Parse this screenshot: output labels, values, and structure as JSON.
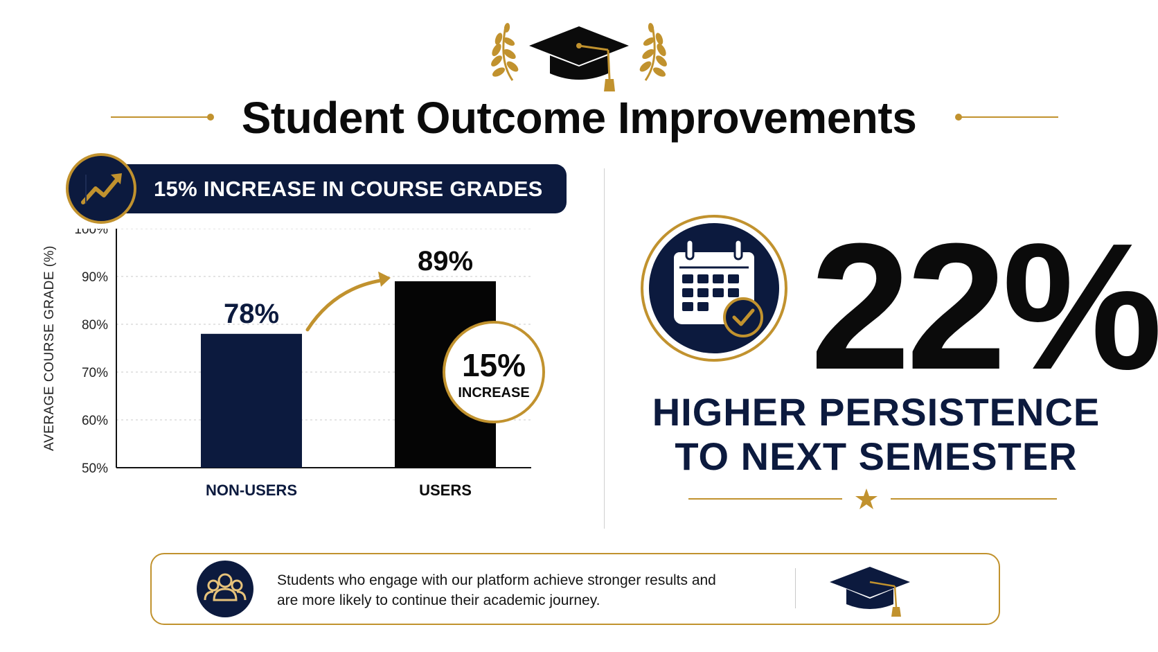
{
  "title": "Student Outcome Improvements",
  "banner": {
    "text": "15% INCREASE IN COURSE GRADES"
  },
  "chart_data": {
    "type": "bar",
    "ylabel": "AVERAGE COURSE GRADE (%)",
    "xlabel": "",
    "ylim": [
      50,
      100
    ],
    "yticks": [
      "50%",
      "60%",
      "70%",
      "80%",
      "90%",
      "100%"
    ],
    "categories": [
      "NON-USERS",
      "USERS"
    ],
    "values": [
      78,
      89
    ],
    "data_labels": [
      "78%",
      "89%"
    ],
    "grid": true,
    "colors": [
      "#0c1a3e",
      "#050505"
    ],
    "annotation": {
      "value": "15%",
      "text": "INCREASE"
    }
  },
  "stat": {
    "value": "22%",
    "line1": "HIGHER PERSISTENCE",
    "line2": "TO NEXT SEMESTER"
  },
  "footer": {
    "line1": "Students who engage with our platform achieve stronger results and",
    "line2": "are more likely to continue their academic journey."
  },
  "icons": {
    "header": "graduation-cap-icon",
    "banner": "trending-up-icon",
    "stat": "calendar-check-icon",
    "footer_left": "users-group-icon",
    "footer_right": "graduation-cap-icon"
  },
  "colors": {
    "navy": "#0c1a3e",
    "gold": "#c1922e",
    "black": "#0b0b0b"
  }
}
